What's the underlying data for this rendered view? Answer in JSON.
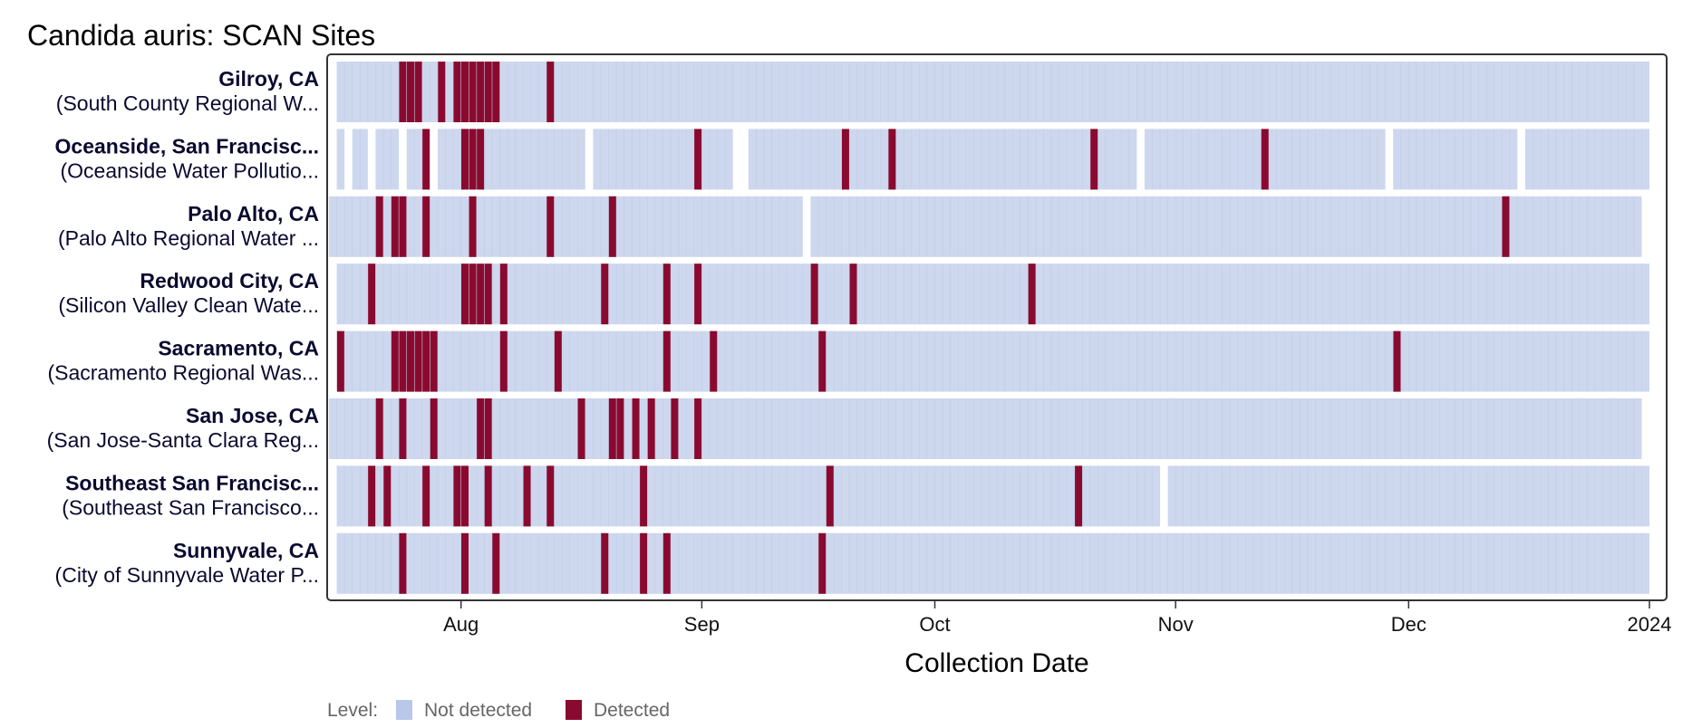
{
  "chart_data": {
    "type": "heatmap",
    "title": "Candida auris: SCAN Sites",
    "xlabel": "Collection Date",
    "x_range": [
      "2023-07-15",
      "2024-01-01"
    ],
    "x_ticks": [
      {
        "date": "2023-08-01",
        "label": "Aug"
      },
      {
        "date": "2023-09-01",
        "label": "Sep"
      },
      {
        "date": "2023-10-01",
        "label": "Oct"
      },
      {
        "date": "2023-11-01",
        "label": "Nov"
      },
      {
        "date": "2023-12-01",
        "label": "Dec"
      },
      {
        "date": "2024-01-01",
        "label": "2024"
      }
    ],
    "legend": {
      "title": "Level:",
      "position": "bottom-left",
      "entries": [
        {
          "label": "Not detected",
          "color": "#b9c7e8"
        },
        {
          "label": "Detected",
          "color": "#8a0a2f"
        }
      ]
    },
    "colors": {
      "not_detected": "#cdd7ee",
      "detected": "#8a0a2f",
      "tile_divider": "#c3cee9",
      "frame": "#333333"
    },
    "sites": [
      {
        "name": "Gilroy, CA",
        "plant": "(South County Regional W...",
        "sampled": [
          [
            "2023-07-16",
            "2023-12-31"
          ]
        ],
        "detected": [
          "2023-07-24",
          "2023-07-25",
          "2023-07-26",
          "2023-07-29",
          "2023-07-31",
          "2023-08-01",
          "2023-08-02",
          "2023-08-03",
          "2023-08-04",
          "2023-08-05",
          "2023-08-12"
        ]
      },
      {
        "name": "Oceanside, San Francisc...",
        "plant": "(Oceanside Water Pollutio...",
        "sampled": [
          [
            "2023-07-16",
            "2023-07-16"
          ],
          [
            "2023-07-18",
            "2023-07-19"
          ],
          [
            "2023-07-21",
            "2023-07-23"
          ],
          [
            "2023-07-25",
            "2023-07-27"
          ],
          [
            "2023-07-29",
            "2023-08-16"
          ],
          [
            "2023-08-18",
            "2023-09-04"
          ],
          [
            "2023-09-07",
            "2023-10-26"
          ],
          [
            "2023-10-28",
            "2023-11-27"
          ],
          [
            "2023-11-29",
            "2023-12-14"
          ],
          [
            "2023-12-16",
            "2023-12-31"
          ]
        ],
        "detected": [
          "2023-07-27",
          "2023-08-01",
          "2023-08-02",
          "2023-08-03",
          "2023-08-31",
          "2023-09-19",
          "2023-09-25",
          "2023-10-21",
          "2023-11-12"
        ]
      },
      {
        "name": "Palo Alto, CA",
        "plant": "(Palo Alto Regional Water ...",
        "sampled": [
          [
            "2023-07-15",
            "2023-09-13"
          ],
          [
            "2023-09-15",
            "2023-12-30"
          ]
        ],
        "detected": [
          "2023-07-21",
          "2023-07-23",
          "2023-07-24",
          "2023-07-27",
          "2023-08-02",
          "2023-08-12",
          "2023-08-20",
          "2023-12-13"
        ]
      },
      {
        "name": "Redwood City, CA",
        "plant": "(Silicon Valley Clean Wate...",
        "sampled": [
          [
            "2023-07-16",
            "2023-12-31"
          ]
        ],
        "detected": [
          "2023-07-20",
          "2023-08-01",
          "2023-08-02",
          "2023-08-03",
          "2023-08-04",
          "2023-08-06",
          "2023-08-19",
          "2023-08-27",
          "2023-08-31",
          "2023-09-15",
          "2023-09-20",
          "2023-10-13"
        ]
      },
      {
        "name": "Sacramento, CA",
        "plant": "(Sacramento Regional Was...",
        "sampled": [
          [
            "2023-07-16",
            "2023-12-31"
          ]
        ],
        "detected": [
          "2023-07-16",
          "2023-07-23",
          "2023-07-24",
          "2023-07-25",
          "2023-07-26",
          "2023-07-27",
          "2023-07-28",
          "2023-08-06",
          "2023-08-13",
          "2023-08-27",
          "2023-09-02",
          "2023-09-16",
          "2023-11-29"
        ]
      },
      {
        "name": "San Jose, CA",
        "plant": "(San Jose-Santa Clara Reg...",
        "sampled": [
          [
            "2023-07-15",
            "2023-12-30"
          ]
        ],
        "detected": [
          "2023-07-21",
          "2023-07-24",
          "2023-07-28",
          "2023-08-03",
          "2023-08-04",
          "2023-08-16",
          "2023-08-20",
          "2023-08-21",
          "2023-08-23",
          "2023-08-25",
          "2023-08-28",
          "2023-08-31"
        ]
      },
      {
        "name": "Southeast San Francisc...",
        "plant": "(Southeast San Francisco...",
        "sampled": [
          [
            "2023-07-16",
            "2023-10-29"
          ],
          [
            "2023-10-31",
            "2023-12-31"
          ]
        ],
        "detected": [
          "2023-07-20",
          "2023-07-22",
          "2023-07-27",
          "2023-07-31",
          "2023-08-01",
          "2023-08-04",
          "2023-08-09",
          "2023-08-12",
          "2023-08-24",
          "2023-09-17",
          "2023-10-19"
        ]
      },
      {
        "name": "Sunnyvale, CA",
        "plant": "(City of Sunnyvale Water P...",
        "sampled": [
          [
            "2023-07-16",
            "2023-12-31"
          ]
        ],
        "detected": [
          "2023-07-24",
          "2023-08-01",
          "2023-08-05",
          "2023-08-19",
          "2023-08-24",
          "2023-08-27",
          "2023-09-16"
        ]
      }
    ]
  }
}
